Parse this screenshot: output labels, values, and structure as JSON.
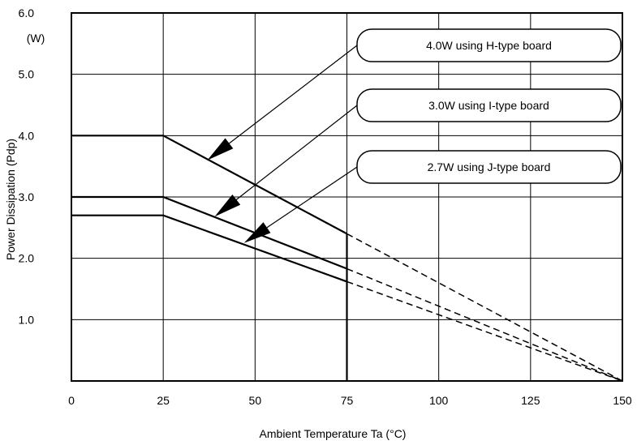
{
  "chart_data": {
    "type": "line",
    "title": "",
    "xlabel": "Ambient Temperature  Ta (°C)",
    "ylabel": "Power Dissipation (Pdp)",
    "yunit": "(W)",
    "xlim": [
      0,
      150
    ],
    "ylim": [
      0,
      6.0
    ],
    "xticks": [
      0,
      25,
      50,
      75,
      100,
      125,
      150
    ],
    "xtick_labels": [
      "0",
      "25",
      "50",
      "75",
      "100",
      "125",
      "150"
    ],
    "yticks": [
      1.0,
      2.0,
      3.0,
      4.0,
      5.0,
      6.0
    ],
    "ytick_labels": [
      "1.0",
      "2.0",
      "3.0",
      "4.0",
      "5.0",
      "6.0"
    ],
    "grid": true,
    "series": [
      {
        "name": "4.0W using H-type board",
        "solid": [
          [
            0,
            4.0
          ],
          [
            25,
            4.0
          ],
          [
            75,
            2.4
          ]
        ],
        "dashed": [
          [
            75,
            2.4
          ],
          [
            150,
            0
          ]
        ],
        "arrow_target": [
          37,
          3.6
        ]
      },
      {
        "name": "3.0W using I-type board",
        "solid": [
          [
            0,
            3.0
          ],
          [
            25,
            3.0
          ],
          [
            75,
            1.83
          ]
        ],
        "dashed": [
          [
            75,
            1.83
          ],
          [
            150,
            0
          ]
        ],
        "arrow_target": [
          39,
          2.68
        ]
      },
      {
        "name": "2.7W using J-type board",
        "solid": [
          [
            0,
            2.7
          ],
          [
            25,
            2.7
          ],
          [
            75,
            1.62
          ]
        ],
        "dashed": [
          [
            75,
            1.62
          ],
          [
            150,
            0
          ]
        ],
        "arrow_target": [
          47,
          2.25
        ]
      }
    ],
    "cutoff_line": {
      "x": 75,
      "y": [
        0,
        2.4
      ]
    }
  }
}
